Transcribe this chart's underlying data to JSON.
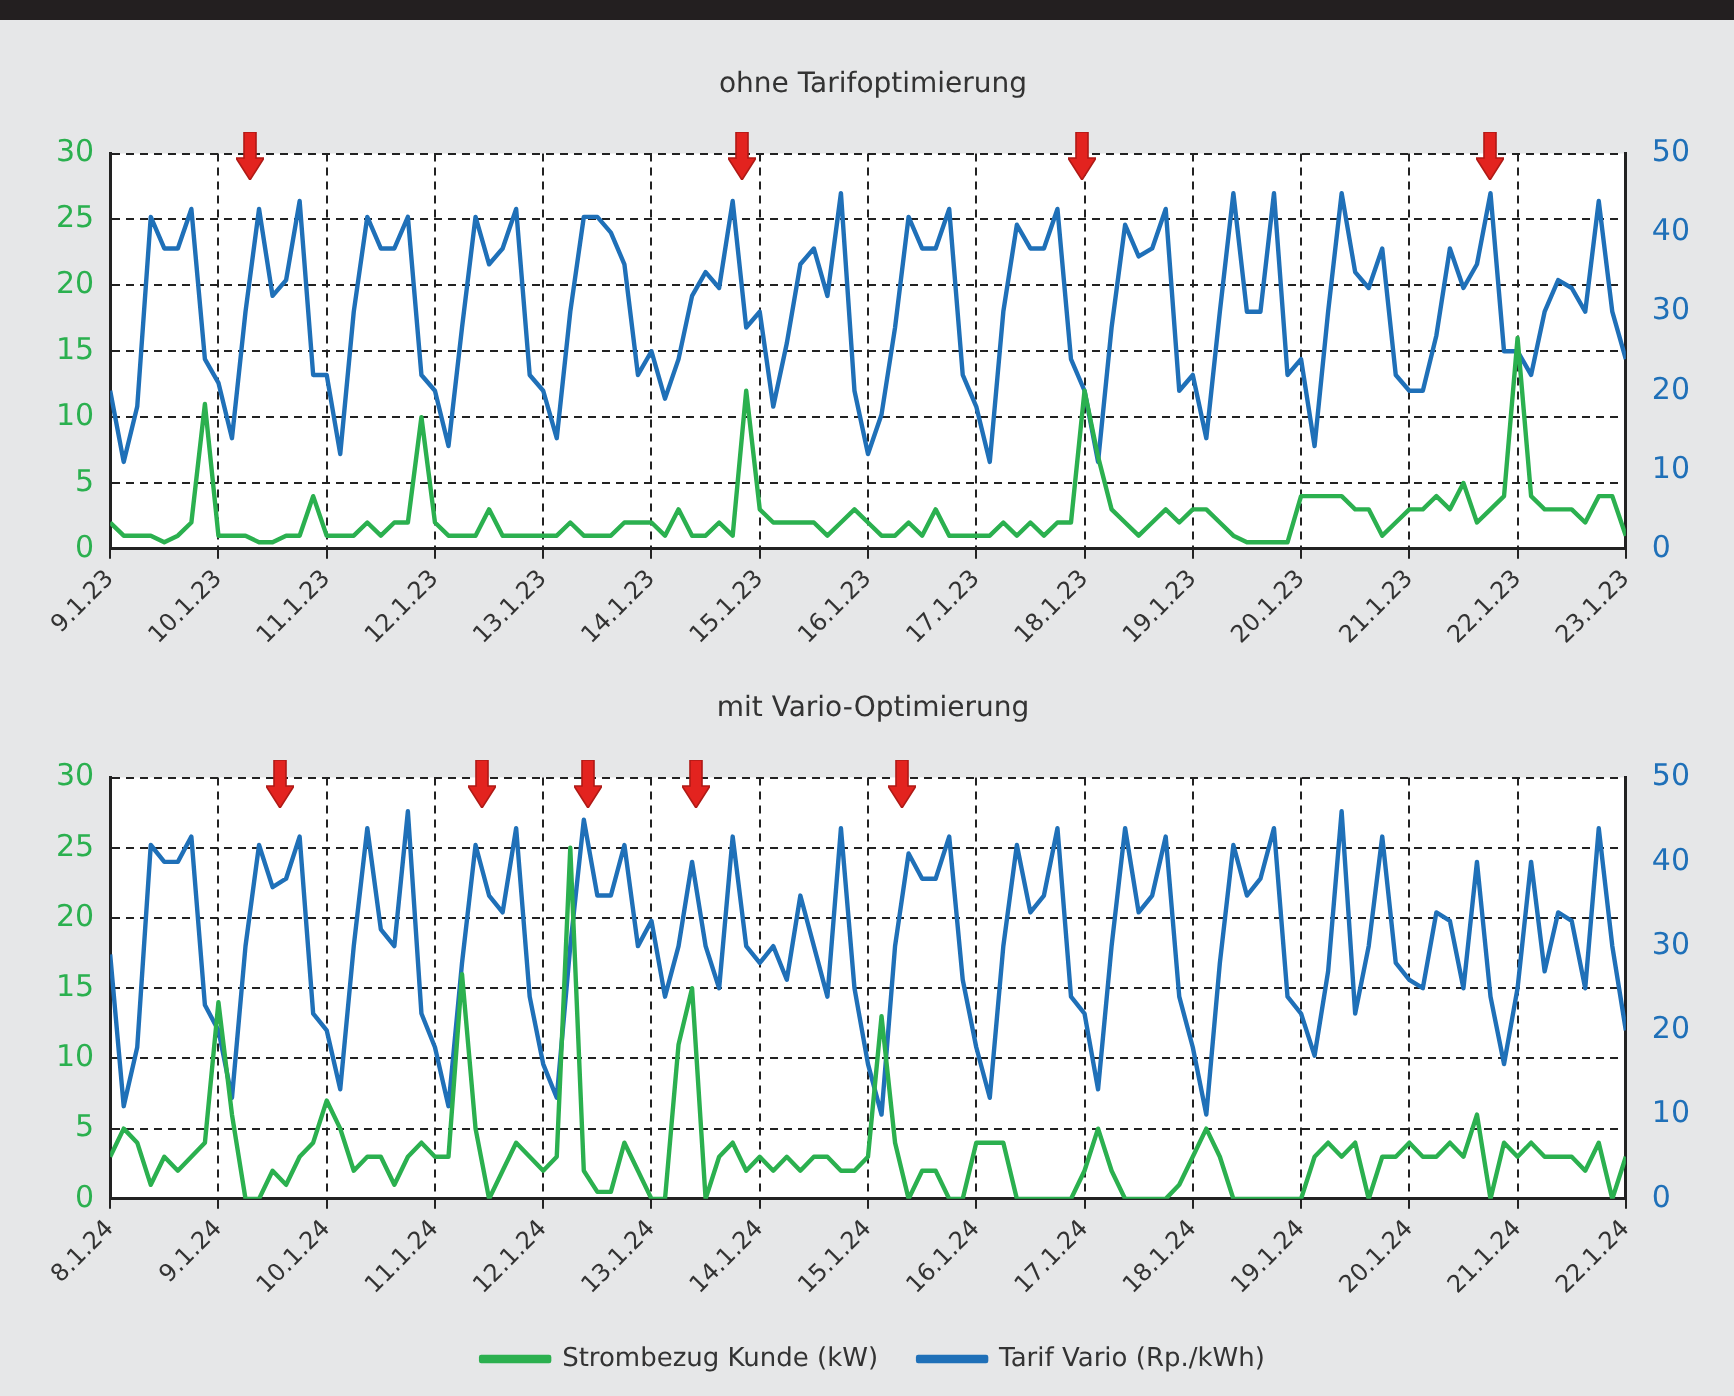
{
  "chart_data": [
    {
      "type": "line",
      "title": "ohne Tarifoptimierung",
      "grid": true,
      "marker": "none",
      "legend": false,
      "x": [
        "--01-09T00:00",
        "--01-09T03:00",
        "--01-09T06:00",
        "--01-09T09:00",
        "--01-09T12:00",
        "--01-09T15:00",
        "--01-09T18:00",
        "--01-09T21:00",
        "--01-10T00:00",
        "--01-10T03:00",
        "--01-10T06:00",
        "--01-10T09:00",
        "--01-10T12:00",
        "--01-10T15:00",
        "--01-10T18:00",
        "--01-10T21:00",
        "--01-11T00:00",
        "--01-11T03:00",
        "--01-11T06:00",
        "--01-11T09:00",
        "--01-11T12:00",
        "--01-11T15:00",
        "--01-11T18:00",
        "--01-11T21:00",
        "--01-12T00:00",
        "--01-12T03:00",
        "--01-12T06:00",
        "--01-12T09:00",
        "--01-12T12:00",
        "--01-12T15:00",
        "--01-12T18:00",
        "--01-12T21:00",
        "--01-13T00:00",
        "--01-13T03:00",
        "--01-13T06:00",
        "--01-13T09:00",
        "--01-13T12:00",
        "--01-13T15:00",
        "--01-13T18:00",
        "--01-13T21:00",
        "--01-14T00:00",
        "--01-14T03:00",
        "--01-14T06:00",
        "--01-14T09:00",
        "--01-14T12:00",
        "--01-14T15:00",
        "--01-14T18:00",
        "--01-14T21:00",
        "--01-15T00:00",
        "--01-15T03:00",
        "--01-15T06:00",
        "--01-15T09:00",
        "--01-15T12:00",
        "--01-15T15:00",
        "--01-15T18:00",
        "--01-15T21:00",
        "--01-16T00:00",
        "--01-16T03:00",
        "--01-16T06:00",
        "--01-16T09:00",
        "--01-16T12:00",
        "--01-16T15:00",
        "--01-16T18:00",
        "--01-16T21:00",
        "--01-17T00:00",
        "--01-17T03:00",
        "--01-17T06:00",
        "--01-17T09:00",
        "--01-17T12:00",
        "--01-17T15:00",
        "--01-17T18:00",
        "--01-17T21:00",
        "--01-18T00:00",
        "--01-18T03:00",
        "--01-18T06:00",
        "--01-18T09:00",
        "--01-18T12:00",
        "--01-18T15:00",
        "--01-18T18:00",
        "--01-18T21:00",
        "--01-19T00:00",
        "--01-19T03:00",
        "--01-19T06:00",
        "--01-19T09:00",
        "--01-19T12:00",
        "--01-19T15:00",
        "--01-19T18:00",
        "--01-19T21:00",
        "--01-20T00:00",
        "--01-20T03:00",
        "--01-20T06:00",
        "--01-20T09:00",
        "--01-20T12:00",
        "--01-20T15:00",
        "--01-20T18:00",
        "--01-20T21:00",
        "--01-21T00:00",
        "--01-21T03:00",
        "--01-21T06:00",
        "--01-21T09:00",
        "--01-21T12:00",
        "--01-21T15:00",
        "--01-21T18:00",
        "--01-21T21:00",
        "--01-22T00:00",
        "--01-22T03:00",
        "--01-22T06:00",
        "--01-22T09:00",
        "--01-22T12:00",
        "--01-22T15:00",
        "--01-22T18:00",
        "--01-22T21:00",
        "--01-23T00:00"
      ],
      "xlim": [
        "--01-09",
        "--01-23"
      ],
      "xticks": [
        {
          "value": "--01-09",
          "label": "9.1.23"
        },
        {
          "value": "--01-10",
          "label": "10.1.23"
        },
        {
          "value": "--01-11",
          "label": "11.1.23"
        },
        {
          "value": "--01-12",
          "label": "12.1.23"
        },
        {
          "value": "--01-13",
          "label": "13.1.23"
        },
        {
          "value": "--01-14",
          "label": "14.1.23"
        },
        {
          "value": "--01-15",
          "label": "15.1.23"
        },
        {
          "value": "--01-16",
          "label": "16.1.23"
        },
        {
          "value": "--01-17",
          "label": "17.1.23"
        },
        {
          "value": "--01-18",
          "label": "18.1.23"
        },
        {
          "value": "--01-19",
          "label": "19.1.23"
        },
        {
          "value": "--01-20",
          "label": "20.1.23"
        },
        {
          "value": "--01-21",
          "label": "21.1.23"
        },
        {
          "value": "--01-22",
          "label": "22.1.23"
        },
        {
          "value": "--01-23",
          "label": "23.1.23"
        }
      ],
      "ylim": [
        0,
        30
      ],
      "yticks": [
        0,
        5,
        10,
        15,
        20,
        25,
        30
      ],
      "y2lim": [
        0,
        50
      ],
      "y2ticks": [
        0,
        10,
        20,
        30,
        40,
        50
      ],
      "series": [
        {
          "color": "#2bb04f",
          "values": [
            2,
            1,
            1,
            1,
            0.5,
            1,
            2,
            11,
            1,
            1,
            1,
            0.5,
            0.5,
            1,
            1,
            4,
            1,
            1,
            1,
            2,
            1,
            2,
            2,
            10,
            2,
            1,
            1,
            1,
            3,
            1,
            1,
            1,
            1,
            1,
            2,
            1,
            1,
            1,
            2,
            2,
            2,
            1,
            3,
            1,
            1,
            2,
            1,
            12,
            3,
            2,
            2,
            2,
            2,
            1,
            2,
            3,
            2,
            1,
            1,
            2,
            1,
            3,
            1,
            1,
            1,
            1,
            2,
            1,
            2,
            1,
            2,
            2,
            12,
            7,
            3,
            2,
            1,
            2,
            3,
            2,
            3,
            3,
            2,
            1,
            0.5,
            0.5,
            0.5,
            0.5,
            4,
            4,
            4,
            4,
            3,
            3,
            1,
            2,
            3,
            3,
            4,
            3,
            5,
            2,
            3,
            4,
            16,
            4,
            3,
            3,
            3,
            2,
            4,
            4,
            1
          ]
        },
        {
          "color": "#1f70b8",
          "axis": "y2",
          "values": [
            20,
            11,
            18,
            42,
            38,
            38,
            43,
            24,
            21,
            14,
            30,
            43,
            32,
            34,
            44,
            22,
            22,
            12,
            30,
            42,
            38,
            38,
            42,
            22,
            20,
            13,
            28,
            42,
            36,
            38,
            43,
            22,
            20,
            14,
            30,
            42,
            42,
            40,
            36,
            22,
            25,
            19,
            24,
            32,
            35,
            33,
            44,
            28,
            30,
            18,
            26,
            36,
            38,
            32,
            45,
            20,
            12,
            17,
            28,
            42,
            38,
            38,
            43,
            22,
            18,
            11,
            30,
            41,
            38,
            38,
            43,
            24,
            20,
            11,
            28,
            41,
            37,
            38,
            43,
            20,
            22,
            14,
            30,
            45,
            30,
            30,
            45,
            22,
            24,
            13,
            30,
            45,
            35,
            33,
            38,
            22,
            20,
            20,
            27,
            38,
            33,
            36,
            45,
            25,
            25,
            22,
            30,
            34,
            33,
            30,
            44,
            30,
            24
          ]
        }
      ]
    },
    {
      "type": "line",
      "title": "mit Vario-Optimierung",
      "grid": true,
      "marker": "none",
      "legend": "bottom",
      "x": [
        "--01-08T00:00",
        "--01-08T03:00",
        "--01-08T06:00",
        "--01-08T09:00",
        "--01-08T12:00",
        "--01-08T15:00",
        "--01-08T18:00",
        "--01-08T21:00",
        "--01-09T00:00",
        "--01-09T03:00",
        "--01-09T06:00",
        "--01-09T09:00",
        "--01-09T12:00",
        "--01-09T15:00",
        "--01-09T18:00",
        "--01-09T21:00",
        "--01-10T00:00",
        "--01-10T03:00",
        "--01-10T06:00",
        "--01-10T09:00",
        "--01-10T12:00",
        "--01-10T15:00",
        "--01-10T18:00",
        "--01-10T21:00",
        "--01-11T00:00",
        "--01-11T03:00",
        "--01-11T06:00",
        "--01-11T09:00",
        "--01-11T12:00",
        "--01-11T15:00",
        "--01-11T18:00",
        "--01-11T21:00",
        "--01-12T00:00",
        "--01-12T03:00",
        "--01-12T06:00",
        "--01-12T09:00",
        "--01-12T12:00",
        "--01-12T15:00",
        "--01-12T18:00",
        "--01-12T21:00",
        "--01-13T00:00",
        "--01-13T03:00",
        "--01-13T06:00",
        "--01-13T09:00",
        "--01-13T12:00",
        "--01-13T15:00",
        "--01-13T18:00",
        "--01-13T21:00",
        "--01-14T00:00",
        "--01-14T03:00",
        "--01-14T06:00",
        "--01-14T09:00",
        "--01-14T12:00",
        "--01-14T15:00",
        "--01-14T18:00",
        "--01-14T21:00",
        "--01-15T00:00",
        "--01-15T03:00",
        "--01-15T06:00",
        "--01-15T09:00",
        "--01-15T12:00",
        "--01-15T15:00",
        "--01-15T18:00",
        "--01-15T21:00",
        "--01-16T00:00",
        "--01-16T03:00",
        "--01-16T06:00",
        "--01-16T09:00",
        "--01-16T12:00",
        "--01-16T15:00",
        "--01-16T18:00",
        "--01-16T21:00",
        "--01-17T00:00",
        "--01-17T03:00",
        "--01-17T06:00",
        "--01-17T09:00",
        "--01-17T12:00",
        "--01-17T15:00",
        "--01-17T18:00",
        "--01-17T21:00",
        "--01-18T00:00",
        "--01-18T03:00",
        "--01-18T06:00",
        "--01-18T09:00",
        "--01-18T12:00",
        "--01-18T15:00",
        "--01-18T18:00",
        "--01-18T21:00",
        "--01-19T00:00",
        "--01-19T03:00",
        "--01-19T06:00",
        "--01-19T09:00",
        "--01-19T12:00",
        "--01-19T15:00",
        "--01-19T18:00",
        "--01-19T21:00",
        "--01-20T00:00",
        "--01-20T03:00",
        "--01-20T06:00",
        "--01-20T09:00",
        "--01-20T12:00",
        "--01-20T15:00",
        "--01-20T18:00",
        "--01-20T21:00",
        "--01-21T00:00",
        "--01-21T03:00",
        "--01-21T06:00",
        "--01-21T09:00",
        "--01-21T12:00",
        "--01-21T15:00",
        "--01-21T18:00",
        "--01-21T21:00",
        "--01-22T00:00"
      ],
      "xlim": [
        "--01-08",
        "--01-22"
      ],
      "xticks": [
        {
          "value": "--01-08",
          "label": "8.1.24"
        },
        {
          "value": "--01-09",
          "label": "9.1.24"
        },
        {
          "value": "--01-10",
          "label": "10.1.24"
        },
        {
          "value": "--01-11",
          "label": "11.1.24"
        },
        {
          "value": "--01-12",
          "label": "12.1.24"
        },
        {
          "value": "--01-13",
          "label": "13.1.24"
        },
        {
          "value": "--01-14",
          "label": "14.1.24"
        },
        {
          "value": "--01-15",
          "label": "15.1.24"
        },
        {
          "value": "--01-16",
          "label": "16.1.24"
        },
        {
          "value": "--01-17",
          "label": "17.1.24"
        },
        {
          "value": "--01-18",
          "label": "18.1.24"
        },
        {
          "value": "--01-19",
          "label": "19.1.24"
        },
        {
          "value": "--01-20",
          "label": "20.1.24"
        },
        {
          "value": "--01-21",
          "label": "21.1.24"
        },
        {
          "value": "--01-22",
          "label": "22.1.24"
        }
      ],
      "ylim": [
        0,
        30
      ],
      "yticks": [
        0,
        5,
        10,
        15,
        20,
        25,
        30
      ],
      "y2lim": [
        0,
        50
      ],
      "y2ticks": [
        0,
        10,
        20,
        30,
        40,
        50
      ],
      "series": [
        {
          "name": "Strombezug Kunde (kW)",
          "color": "#2bb04f",
          "values": [
            3,
            5,
            4,
            1,
            3,
            2,
            3,
            4,
            14,
            6,
            0,
            0,
            2,
            1,
            3,
            4,
            7,
            5,
            2,
            3,
            3,
            1,
            3,
            4,
            3,
            3,
            16,
            5,
            0,
            2,
            4,
            3,
            2,
            3,
            25,
            2,
            0.5,
            0.5,
            4,
            2,
            0,
            0,
            11,
            15,
            0,
            3,
            4,
            2,
            3,
            2,
            3,
            2,
            3,
            3,
            2,
            2,
            3,
            13,
            4,
            0,
            2,
            2,
            0,
            0,
            4,
            4,
            4,
            0,
            0,
            0,
            0,
            0,
            2,
            5,
            2,
            0,
            0,
            0,
            0,
            1,
            3,
            5,
            3,
            0,
            0,
            0,
            0,
            0,
            0,
            3,
            4,
            3,
            4,
            0,
            3,
            3,
            4,
            3,
            3,
            4,
            3,
            6,
            0,
            4,
            3,
            4,
            3,
            3,
            3,
            2,
            4,
            0,
            3
          ]
        },
        {
          "name": "Tarif Vario (Rp./kWh)",
          "color": "#1f70b8",
          "axis": "y2",
          "values": [
            29,
            11,
            18,
            42,
            40,
            40,
            43,
            23,
            20,
            12,
            30,
            42,
            37,
            38,
            43,
            22,
            20,
            13,
            30,
            44,
            32,
            30,
            46,
            22,
            18,
            11,
            28,
            42,
            36,
            34,
            44,
            24,
            16,
            12,
            30,
            45,
            36,
            36,
            42,
            30,
            33,
            24,
            30,
            40,
            30,
            25,
            43,
            30,
            28,
            30,
            26,
            36,
            30,
            24,
            44,
            25,
            16,
            10,
            30,
            41,
            38,
            38,
            43,
            26,
            18,
            12,
            30,
            42,
            34,
            36,
            44,
            24,
            22,
            13,
            30,
            44,
            34,
            36,
            43,
            24,
            18,
            10,
            28,
            42,
            36,
            38,
            44,
            24,
            22,
            17,
            27,
            46,
            22,
            30,
            43,
            28,
            26,
            25,
            34,
            33,
            25,
            40,
            24,
            16,
            25,
            40,
            27,
            34,
            33,
            25,
            44,
            30,
            20
          ]
        }
      ]
    }
  ]
}
